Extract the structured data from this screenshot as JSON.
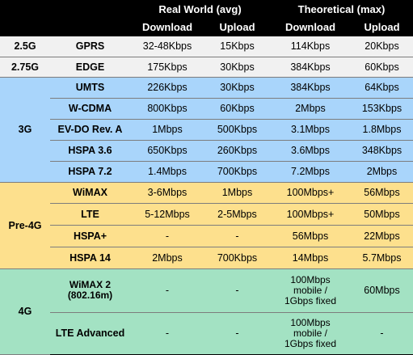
{
  "header": {
    "real_world": "Real World (avg)",
    "theoretical": "Theoretical (max)",
    "download": "Download",
    "upload": "Upload",
    "download2": "Download",
    "upload2": "Upload"
  },
  "groups": {
    "g25": "2.5G",
    "g275": "2.75G",
    "g3": "3G",
    "pre4g": "Pre-4G",
    "g4": "4G"
  },
  "rows": [
    {
      "tech": "GPRS",
      "rw_down": "32-48Kbps",
      "rw_up": "15Kbps",
      "th_down": "114Kbps",
      "th_up": "20Kbps"
    },
    {
      "tech": "EDGE",
      "rw_down": "175Kbps",
      "rw_up": "30Kbps",
      "th_down": "384Kbps",
      "th_up": "60Kbps"
    },
    {
      "tech": "UMTS",
      "rw_down": "226Kbps",
      "rw_up": "30Kbps",
      "th_down": "384Kbps",
      "th_up": "64Kbps"
    },
    {
      "tech": "W-CDMA",
      "rw_down": "800Kbps",
      "rw_up": "60Kbps",
      "th_down": "2Mbps",
      "th_up": "153Kbps"
    },
    {
      "tech": "EV-DO Rev. A",
      "rw_down": "1Mbps",
      "rw_up": "500Kbps",
      "th_down": "3.1Mbps",
      "th_up": "1.8Mbps"
    },
    {
      "tech": "HSPA 3.6",
      "rw_down": "650Kbps",
      "rw_up": "260Kbps",
      "th_down": "3.6Mbps",
      "th_up": "348Kbps"
    },
    {
      "tech": "HSPA 7.2",
      "rw_down": "1.4Mbps",
      "rw_up": "700Kbps",
      "th_down": "7.2Mbps",
      "th_up": "2Mbps"
    },
    {
      "tech": "WiMAX",
      "rw_down": "3-6Mbps",
      "rw_up": "1Mbps",
      "th_down": "100Mbps+",
      "th_up": "56Mbps"
    },
    {
      "tech": "LTE",
      "rw_down": "5-12Mbps",
      "rw_up": "2-5Mbps",
      "th_down": "100Mbps+",
      "th_up": "50Mbps"
    },
    {
      "tech": "HSPA+",
      "rw_down": "-",
      "rw_up": "-",
      "th_down": "56Mbps",
      "th_up": "22Mbps"
    },
    {
      "tech": "HSPA 14",
      "rw_down": "2Mbps",
      "rw_up": "700Kbps",
      "th_down": "14Mbps",
      "th_up": "5.7Mbps"
    },
    {
      "tech_line1": "WiMAX 2",
      "tech_line2": "(802.16m)",
      "rw_down": "-",
      "rw_up": "-",
      "th_line1": "100Mbps",
      "th_line2": "mobile /",
      "th_line3": "1Gbps fixed",
      "th_up": "60Mbps"
    },
    {
      "tech": "LTE Advanced",
      "rw_down": "-",
      "rw_up": "-",
      "th_line1": "100Mbps",
      "th_line2": "mobile /",
      "th_line3": "1Gbps fixed",
      "th_up": "-"
    }
  ]
}
